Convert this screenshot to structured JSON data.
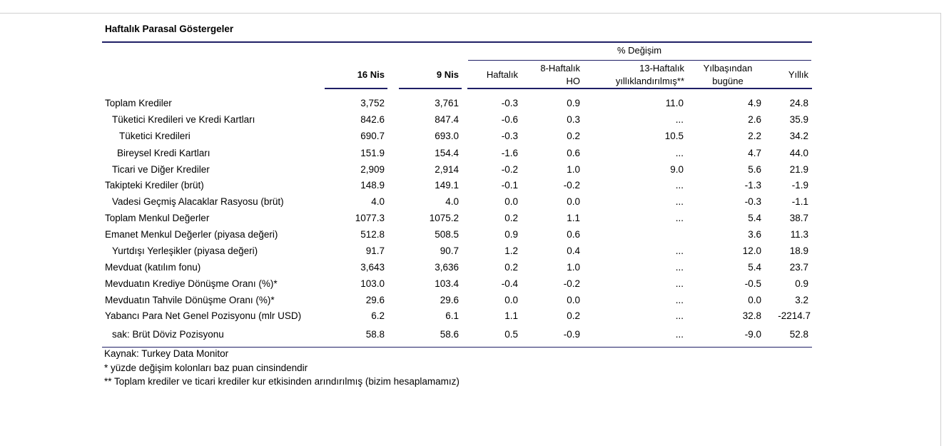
{
  "title": "Haftalık Parasal Göstergeler",
  "header": {
    "group_label": "% Değişim",
    "col_16nis": "16 Nis",
    "col_9nis": "9 Nis",
    "col_haftalik": "Haftalık",
    "col_8haftalik_line1": "8-Haftalık",
    "col_8haftalik_line2": "HO",
    "col_13haftalik_line1": "13-Haftalık",
    "col_13haftalik_line2": "yıllıklandırılmış**",
    "col_ytd_line1": "Yılbaşından",
    "col_ytd_line2": "bugüne",
    "col_yillik": "Yıllık"
  },
  "rows": [
    {
      "label": "Toplam Krediler",
      "indent": 0,
      "v16": "3,752",
      "v9": "3,761",
      "haftalik": "-0.3",
      "h8": "0.9",
      "h13": "11.0",
      "ytd": "4.9",
      "yillik": "24.8"
    },
    {
      "label": "Tüketici Kredileri ve Kredi Kartları",
      "indent": 1,
      "v16": "842.6",
      "v9": "847.4",
      "haftalik": "-0.6",
      "h8": "0.3",
      "h13": "...",
      "ytd": "2.6",
      "yillik": "35.9"
    },
    {
      "label": "Tüketici Kredileri",
      "indent": 2,
      "v16": "690.7",
      "v9": "693.0",
      "haftalik": "-0.3",
      "h8": "0.2",
      "h13": "10.5",
      "ytd": "2.2",
      "yillik": "34.2"
    },
    {
      "label": "Bireysel Kredi Kartları",
      "indent": 2,
      "v16": "151.9",
      "v9": "154.4",
      "haftalik": "-1.6",
      "h8": "0.6",
      "h13": "...",
      "ytd": "4.7",
      "yillik": "44.0"
    },
    {
      "label": "Ticari ve Diğer Krediler",
      "indent": 1,
      "v16": "2,909",
      "v9": "2,914",
      "haftalik": "-0.2",
      "h8": "1.0",
      "h13": "9.0",
      "ytd": "5.6",
      "yillik": "21.9"
    },
    {
      "label": "Takipteki Krediler (brüt)",
      "indent": 0,
      "v16": "148.9",
      "v9": "149.1",
      "haftalik": "-0.1",
      "h8": "-0.2",
      "h13": "...",
      "ytd": "-1.3",
      "yillik": "-1.9"
    },
    {
      "label": "Vadesi Geçmiş Alacaklar Rasyosu (brüt)",
      "indent": 1,
      "v16": "4.0",
      "v9": "4.0",
      "haftalik": "0.0",
      "h8": "0.0",
      "h13": "...",
      "ytd": "-0.3",
      "yillik": "-1.1"
    },
    {
      "label": "Toplam Menkul Değerler",
      "indent": 0,
      "v16": "1077.3",
      "v9": "1075.2",
      "haftalik": "0.2",
      "h8": "1.1",
      "h13": "...",
      "ytd": "5.4",
      "yillik": "38.7"
    },
    {
      "label": "Emanet Menkul Değerler (piyasa değeri)",
      "indent": 0,
      "v16": "512.8",
      "v9": "508.5",
      "haftalik": "0.9",
      "h8": "0.6",
      "h13": "",
      "ytd": "3.6",
      "yillik": "11.3"
    },
    {
      "label": "Yurtdışı Yerleşikler (piyasa değeri)",
      "indent": 1,
      "v16": "91.7",
      "v9": "90.7",
      "haftalik": "1.2",
      "h8": "0.4",
      "h13": "...",
      "ytd": "12.0",
      "yillik": "18.9"
    },
    {
      "label": "Mevduat (katılım fonu)",
      "indent": 0,
      "v16": "3,643",
      "v9": "3,636",
      "haftalik": "0.2",
      "h8": "1.0",
      "h13": "...",
      "ytd": "5.4",
      "yillik": "23.7"
    },
    {
      "label": "Mevduatın Krediye Dönüşme Oranı (%)*",
      "indent": 0,
      "v16": "103.0",
      "v9": "103.4",
      "haftalik": "-0.4",
      "h8": "-0.2",
      "h13": "...",
      "ytd": "-0.5",
      "yillik": "0.9"
    },
    {
      "label": "Mevduatın Tahvile Dönüşme Oranı (%)*",
      "indent": 0,
      "v16": "29.6",
      "v9": "29.6",
      "haftalik": "0.0",
      "h8": "0.0",
      "h13": "...",
      "ytd": "0.0",
      "yillik": "3.2"
    },
    {
      "label": "Yabancı Para Net Genel Pozisyonu (mlr USD)",
      "indent": 0,
      "v16": "6.2",
      "v9": "6.1",
      "haftalik": "1.1",
      "h8": "0.2",
      "h13": "...",
      "ytd": "32.8",
      "yillik": "-2214.7"
    },
    {
      "label": "sak: Brüt Döviz Pozisyonu",
      "indent": 1,
      "v16": "58.8",
      "v9": "58.6",
      "haftalik": "0.5",
      "h8": "-0.9",
      "h13": "...",
      "ytd": "-9.0",
      "yillik": "52.8"
    }
  ],
  "notes": [
    "Kaynak: Turkey Data Monitor",
    "* yüzde değişim kolonları baz puan cinsindendir",
    "** Toplam krediler ve ticari krediler kur etkisinden arındırılmış (bizim hesaplamamız)"
  ]
}
